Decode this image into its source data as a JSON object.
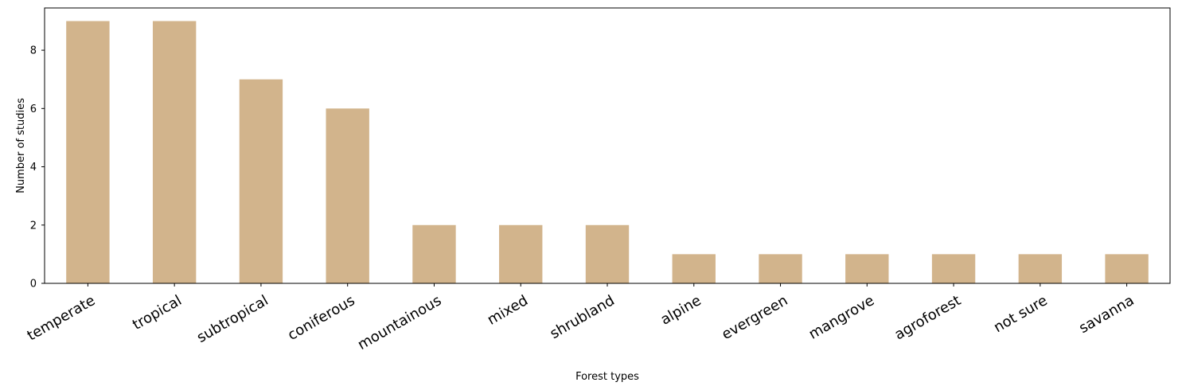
{
  "chart_data": {
    "type": "bar",
    "x_label": "Forest types",
    "y_label": "Number of studies",
    "categories": [
      "temperate",
      "tropical",
      "subtropical",
      "coniferous",
      "mountainous",
      "mixed",
      "shrubland",
      "alpine",
      "evergreen",
      "mangrove",
      "agroforest",
      "not sure",
      "savanna"
    ],
    "values": [
      9,
      9,
      7,
      6,
      2,
      2,
      2,
      1,
      1,
      1,
      1,
      1,
      1
    ],
    "color": "#d2b48c",
    "ylim": [
      0,
      9.45
    ],
    "yticks": [
      0,
      2,
      4,
      6,
      8
    ],
    "grid": false
  }
}
